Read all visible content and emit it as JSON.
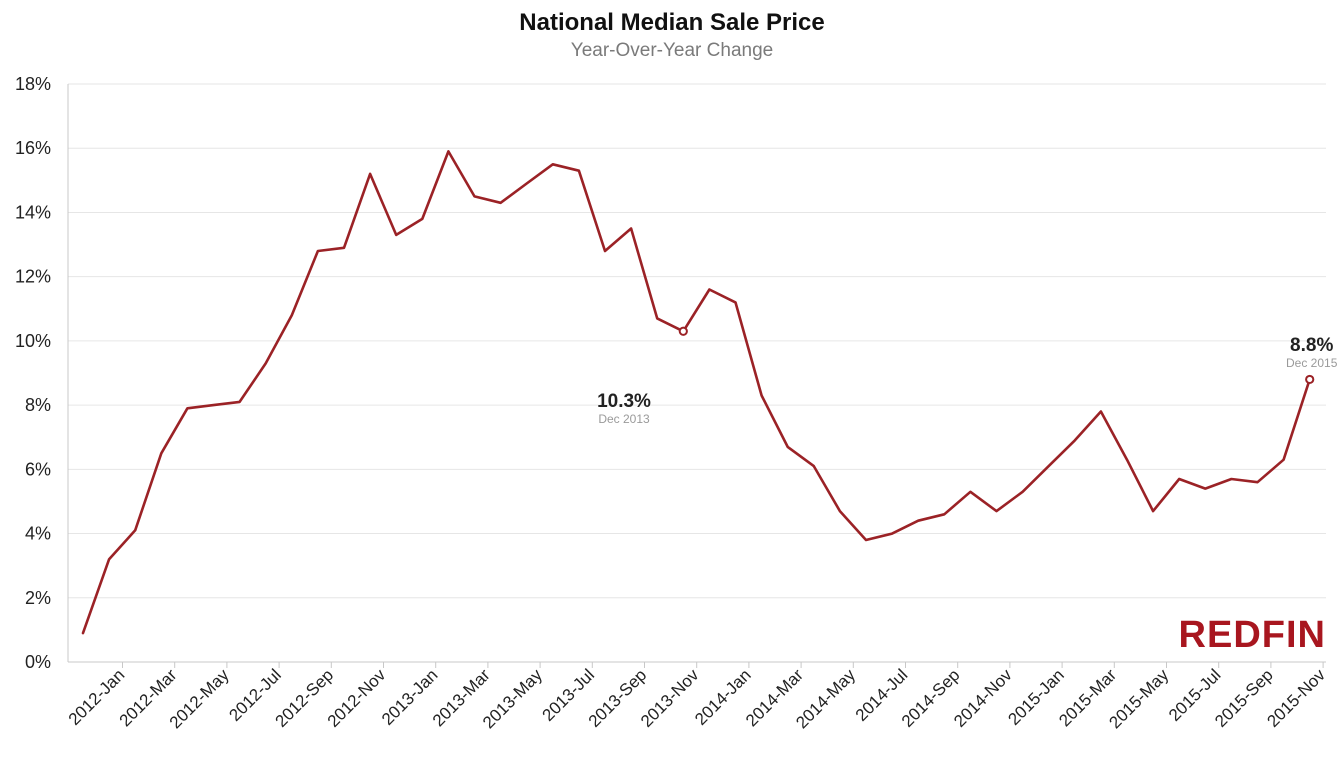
{
  "chart_data": {
    "type": "line",
    "title": "National Median Sale Price",
    "subtitle": "Year-Over-Year Change",
    "ylim": [
      0,
      18
    ],
    "yticks": [
      0,
      2,
      4,
      6,
      8,
      10,
      12,
      14,
      16,
      18
    ],
    "ytick_labels": [
      "0%",
      "2%",
      "4%",
      "6%",
      "8%",
      "10%",
      "12%",
      "14%",
      "16%",
      "18%"
    ],
    "x": [
      "2012-Jan",
      "2012-Feb",
      "2012-Mar",
      "2012-Apr",
      "2012-May",
      "2012-Jun",
      "2012-Jul",
      "2012-Aug",
      "2012-Sep",
      "2012-Oct",
      "2012-Nov",
      "2012-Dec",
      "2013-Jan",
      "2013-Feb",
      "2013-Mar",
      "2013-Apr",
      "2013-May",
      "2013-Jun",
      "2013-Jul",
      "2013-Aug",
      "2013-Sep",
      "2013-Oct",
      "2013-Nov",
      "2013-Dec",
      "2014-Jan",
      "2014-Feb",
      "2014-Mar",
      "2014-Apr",
      "2014-May",
      "2014-Jun",
      "2014-Jul",
      "2014-Aug",
      "2014-Sep",
      "2014-Oct",
      "2014-Nov",
      "2014-Dec",
      "2015-Jan",
      "2015-Feb",
      "2015-Mar",
      "2015-Apr",
      "2015-May",
      "2015-Jun",
      "2015-Jul",
      "2015-Aug",
      "2015-Sep",
      "2015-Oct",
      "2015-Nov",
      "2015-Dec"
    ],
    "xtick_labels": [
      "2012-Jan",
      "2012-Mar",
      "2012-May",
      "2012-Jul",
      "2012-Sep",
      "2012-Nov",
      "2013-Jan",
      "2013-Mar",
      "2013-May",
      "2013-Jul",
      "2013-Sep",
      "2013-Nov",
      "2014-Jan",
      "2014-Mar",
      "2014-May",
      "2014-Jul",
      "2014-Sep",
      "2014-Nov",
      "2015-Jan",
      "2015-Mar",
      "2015-May",
      "2015-Jul",
      "2015-Sep",
      "2015-Nov"
    ],
    "series": [
      {
        "values": [
          0.9,
          3.2,
          4.1,
          6.5,
          7.9,
          8.0,
          8.1,
          9.3,
          10.8,
          12.8,
          12.9,
          15.2,
          13.3,
          13.8,
          15.9,
          14.5,
          14.3,
          14.9,
          15.5,
          15.3,
          12.8,
          13.5,
          10.7,
          10.3,
          11.6,
          11.2,
          8.3,
          6.7,
          6.1,
          4.7,
          3.8,
          4.0,
          4.4,
          4.6,
          5.3,
          4.7,
          5.3,
          6.1,
          6.9,
          7.8,
          6.3,
          4.7,
          5.7,
          5.4,
          5.7,
          5.6,
          6.3,
          8.8
        ],
        "color": "#9b2226"
      }
    ],
    "annotations": [
      {
        "x": "2013-Dec",
        "value_label": "10.3%",
        "date_label": "Dec 2013"
      },
      {
        "x": "2015-Dec",
        "value_label": "8.8%",
        "date_label": "Dec 2015"
      }
    ],
    "grid": true,
    "legend": "none"
  },
  "logo": {
    "text": "REDFIN",
    "color": "#a8161f"
  }
}
